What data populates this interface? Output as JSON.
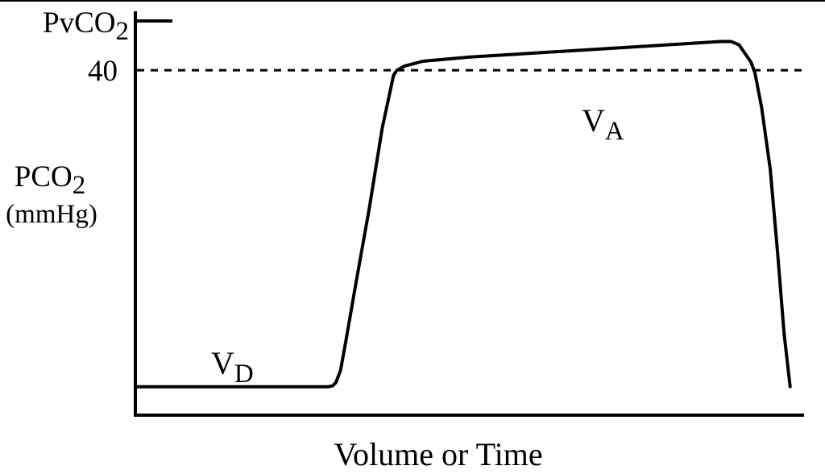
{
  "chart_data": {
    "type": "line",
    "xlabel": "Volume or Time",
    "ylabel": {
      "main": "PCO",
      "subscript": "2",
      "unit": "(mmHg)"
    },
    "y_ticks": [
      {
        "label": "40",
        "value": 40
      }
    ],
    "pvco2_marker": {
      "main": "PvCO",
      "subscript": "2",
      "value": 46
    },
    "reference_line": {
      "value": 40,
      "style": "dashed"
    },
    "region_labels": [
      {
        "main": "V",
        "subscript": "D"
      },
      {
        "main": "V",
        "subscript": "A"
      }
    ],
    "xlim": [
      0,
      100
    ],
    "ylim": [
      0,
      46
    ],
    "grid": false,
    "series": [
      {
        "points": [
          [
            0,
            1.5
          ],
          [
            28.9,
            1.5
          ],
          [
            29.5,
            1.6
          ],
          [
            30.0,
            2
          ],
          [
            30.7,
            3.5
          ],
          [
            31.5,
            7
          ],
          [
            33,
            14
          ],
          [
            35,
            23
          ],
          [
            37,
            33
          ],
          [
            38.7,
            39.4
          ],
          [
            39.2,
            40
          ],
          [
            40.3,
            40.5
          ],
          [
            43.1,
            41.1
          ],
          [
            50,
            41.6
          ],
          [
            60,
            42.1
          ],
          [
            70,
            42.6
          ],
          [
            80,
            43.1
          ],
          [
            88,
            43.5
          ],
          [
            89.6,
            43.5
          ],
          [
            90.8,
            43.1
          ],
          [
            92.6,
            41.0
          ],
          [
            93.2,
            39.7
          ],
          [
            94.2,
            35.5
          ],
          [
            95.5,
            28
          ],
          [
            96.6,
            18
          ],
          [
            97.6,
            8
          ],
          [
            98.5,
            1.5
          ]
        ]
      }
    ]
  }
}
